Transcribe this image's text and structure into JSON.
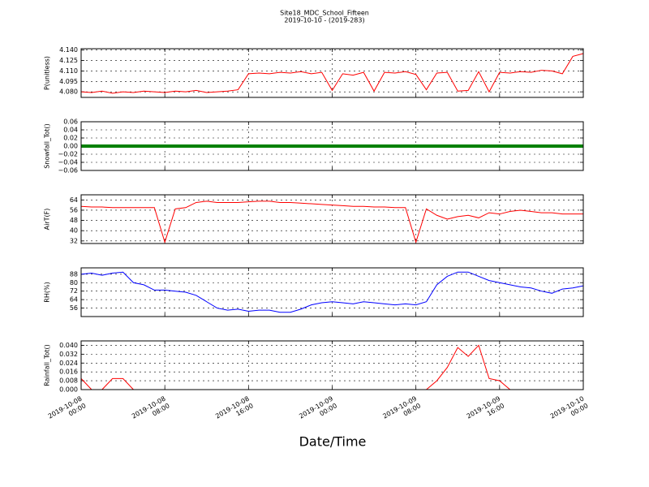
{
  "chart_data": {
    "type": "line",
    "title": "Site18_MDC_School_Fifteen",
    "subtitle": "2019-10-10 - (2019-283)",
    "xlabel": "Date/Time",
    "x": [
      "2019-10-08 00:00",
      "2019-10-08 01:00",
      "2019-10-08 02:00",
      "2019-10-08 03:00",
      "2019-10-08 04:00",
      "2019-10-08 05:00",
      "2019-10-08 06:00",
      "2019-10-08 07:00",
      "2019-10-08 08:00",
      "2019-10-08 09:00",
      "2019-10-08 10:00",
      "2019-10-08 11:00",
      "2019-10-08 12:00",
      "2019-10-08 13:00",
      "2019-10-08 14:00",
      "2019-10-08 15:00",
      "2019-10-08 16:00",
      "2019-10-08 17:00",
      "2019-10-08 18:00",
      "2019-10-08 19:00",
      "2019-10-08 20:00",
      "2019-10-08 21:00",
      "2019-10-08 22:00",
      "2019-10-08 23:00",
      "2019-10-09 00:00",
      "2019-10-09 01:00",
      "2019-10-09 02:00",
      "2019-10-09 03:00",
      "2019-10-09 04:00",
      "2019-10-09 05:00",
      "2019-10-09 06:00",
      "2019-10-09 07:00",
      "2019-10-09 08:00",
      "2019-10-09 09:00",
      "2019-10-09 10:00",
      "2019-10-09 11:00",
      "2019-10-09 12:00",
      "2019-10-09 13:00",
      "2019-10-09 14:00",
      "2019-10-09 15:00",
      "2019-10-09 16:00",
      "2019-10-09 17:00",
      "2019-10-09 18:00",
      "2019-10-09 19:00",
      "2019-10-09 20:00",
      "2019-10-09 21:00",
      "2019-10-09 22:00",
      "2019-10-09 23:00",
      "2019-10-10 00:00"
    ],
    "xlim": [
      "2019-10-08 00:00",
      "2019-10-10 00:00"
    ],
    "xticks": [
      "2019-10-08 00:00",
      "2019-10-08 08:00",
      "2019-10-08 16:00",
      "2019-10-09 00:00",
      "2019-10-09 08:00",
      "2019-10-09 16:00",
      "2019-10-10 00:00"
    ],
    "grid": true,
    "panels": [
      {
        "ylabel": "P(unitless)",
        "ylim": [
          4.072,
          4.142
        ],
        "yticks": [
          {
            "value": 4.08,
            "label": "4.080"
          },
          {
            "value": 4.095,
            "label": "4.095"
          },
          {
            "value": 4.11,
            "label": "4.110"
          },
          {
            "value": 4.125,
            "label": "4.125"
          },
          {
            "value": 4.14,
            "label": "4.140"
          }
        ],
        "series": [
          {
            "color": "#ff0000",
            "values": [
              4.08,
              4.079,
              4.081,
              4.078,
              4.08,
              4.079,
              4.081,
              4.08,
              4.079,
              4.081,
              4.08,
              4.082,
              4.079,
              4.08,
              4.081,
              4.083,
              4.106,
              4.107,
              4.106,
              4.108,
              4.107,
              4.109,
              4.106,
              4.108,
              4.082,
              4.106,
              4.104,
              4.108,
              4.081,
              4.108,
              4.107,
              4.109,
              4.105,
              4.083,
              4.107,
              4.108,
              4.081,
              4.082,
              4.109,
              4.08,
              4.108,
              4.107,
              4.109,
              4.108,
              4.111,
              4.11,
              4.106,
              4.131,
              4.135
            ]
          }
        ]
      },
      {
        "ylabel": "Snowfall_Tot()",
        "ylim": [
          -0.06,
          0.06
        ],
        "yticks": [
          {
            "value": -0.06,
            "label": "−0.06"
          },
          {
            "value": -0.04,
            "label": "−0.04"
          },
          {
            "value": -0.02,
            "label": "−0.02"
          },
          {
            "value": 0,
            "label": "0.00"
          },
          {
            "value": 0.02,
            "label": "0.02"
          },
          {
            "value": 0.04,
            "label": "0.04"
          },
          {
            "value": 0.06,
            "label": "0.06"
          }
        ],
        "series": [
          {
            "color": "#008000",
            "values": [
              0,
              0,
              0,
              0,
              0,
              0,
              0,
              0,
              0,
              0,
              0,
              0,
              0,
              0,
              0,
              0,
              0,
              0,
              0,
              0,
              0,
              0,
              0,
              0,
              0,
              0,
              0,
              0,
              0,
              0,
              0,
              0,
              0,
              0,
              0,
              0,
              0,
              0,
              0,
              0,
              0,
              0,
              0,
              0,
              0,
              0,
              0,
              0,
              0
            ]
          }
        ]
      },
      {
        "ylabel": "AirT(F)",
        "ylim": [
          30,
          68
        ],
        "yticks": [
          32,
          40,
          48,
          56,
          64
        ],
        "series": [
          {
            "color": "#ff0000",
            "values": [
              59,
              58.5,
              58.5,
              58,
              58,
              58,
              58,
              58,
              31,
              57,
              58,
              62,
              63,
              62,
              62,
              62,
              62.5,
              63,
              63,
              62,
              62,
              61.5,
              61,
              60.5,
              60,
              59.5,
              59,
              59,
              58.5,
              58.5,
              58,
              58,
              31,
              57,
              52,
              49,
              51,
              52,
              50,
              54,
              53,
              55,
              56,
              55,
              54,
              54,
              53,
              53,
              53
            ]
          }
        ]
      },
      {
        "ylabel": "RH(%)",
        "ylim": [
          48,
          94
        ],
        "yticks": [
          56,
          64,
          72,
          80,
          88
        ],
        "series": [
          {
            "color": "#0000ff",
            "values": [
              88,
              89,
              87,
              89,
              90,
              80,
              78,
              73,
              73,
              72,
              71,
              68,
              62,
              56,
              54,
              55,
              53,
              54,
              54,
              52,
              52,
              55,
              59,
              61,
              62,
              61,
              60,
              62,
              61,
              60,
              59,
              60,
              59,
              62,
              78,
              86,
              90,
              90,
              86,
              82,
              80,
              78,
              76,
              75,
              72,
              70,
              74,
              75,
              77
            ]
          }
        ]
      },
      {
        "ylabel": "Rainfall_Tot()",
        "ylim": [
          0,
          0.044
        ],
        "yticks": [
          {
            "value": 0,
            "label": "0.000"
          },
          {
            "value": 0.008,
            "label": "0.008"
          },
          {
            "value": 0.016,
            "label": "0.016"
          },
          {
            "value": 0.024,
            "label": "0.024"
          },
          {
            "value": 0.032,
            "label": "0.032"
          },
          {
            "value": 0.04,
            "label": "0.040"
          }
        ],
        "series": [
          {
            "color": "#ff0000",
            "values": [
              0.01,
              0,
              0,
              0.01,
              0.01,
              0,
              0,
              0,
              0,
              0,
              0,
              0,
              0,
              0,
              0,
              0,
              0,
              0,
              0,
              0,
              0,
              0,
              0,
              0,
              0,
              0,
              0,
              0,
              0,
              0,
              0,
              0,
              0,
              0,
              0.008,
              0.02,
              0.038,
              0.03,
              0.04,
              0.01,
              0.008,
              0,
              0,
              0,
              0,
              0,
              0,
              0,
              0
            ]
          }
        ]
      }
    ]
  }
}
